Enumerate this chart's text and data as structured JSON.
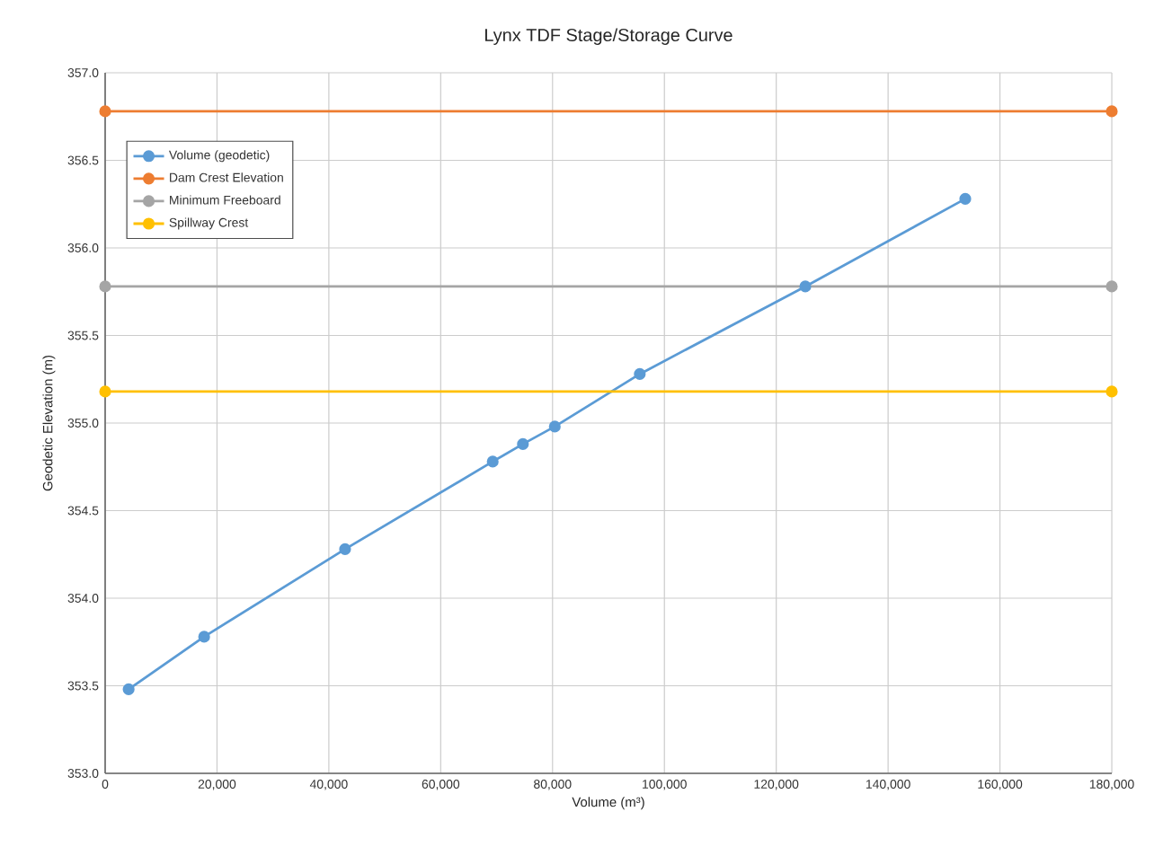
{
  "chart_data": {
    "type": "line",
    "title": "Lynx TDF Stage/Storage Curve",
    "xlabel": "Volume (m³)",
    "ylabel": "Geodetic Elevation (m)",
    "xlim": [
      0,
      180000
    ],
    "ylim": [
      353.0,
      357.0
    ],
    "xticks": [
      0,
      {
        "value": 20000,
        "label": "20,000"
      },
      {
        "value": 40000,
        "label": "40,000"
      },
      {
        "value": 60000,
        "label": "60,000"
      },
      {
        "value": 80000,
        "label": "80,000"
      },
      {
        "value": 100000,
        "label": "100,000"
      },
      {
        "value": 120000,
        "label": "120,000"
      },
      {
        "value": 140000,
        "label": "140,000"
      },
      {
        "value": 160000,
        "label": "160,000"
      },
      {
        "value": 180000,
        "label": "180,000"
      }
    ],
    "yticks": [
      {
        "value": 353.0,
        "label": "353.0"
      },
      {
        "value": 353.5,
        "label": "353.5"
      },
      {
        "value": 354.0,
        "label": "354.0"
      },
      {
        "value": 354.5,
        "label": "354.5"
      },
      {
        "value": 355.0,
        "label": "355.0"
      },
      {
        "value": 355.5,
        "label": "355.5"
      },
      {
        "value": 356.0,
        "label": "356.0"
      },
      {
        "value": 356.5,
        "label": "356.5"
      },
      {
        "value": 357.0,
        "label": "357.0"
      }
    ],
    "grid": true,
    "legend": "top left",
    "marker": "circle",
    "line_style": "solid",
    "series": [
      {
        "name": "Volume (geodetic)",
        "color": "#5b9bd5",
        "x": [
          4200,
          17700,
          42900,
          69300,
          74700,
          80400,
          95600,
          125200,
          153800
        ],
        "values": [
          353.48,
          353.78,
          354.28,
          354.78,
          354.88,
          354.98,
          355.28,
          355.78,
          356.28
        ]
      },
      {
        "name": "Dam Crest Elevation",
        "color": "#ed7d31",
        "x": [
          0,
          180000
        ],
        "values": [
          356.78,
          356.78
        ]
      },
      {
        "name": "Minimum Freeboard",
        "color": "#a5a5a5",
        "x": [
          0,
          180000
        ],
        "values": [
          355.78,
          355.78
        ]
      },
      {
        "name": "Spillway Crest",
        "color": "#ffc000",
        "x": [
          0,
          180000
        ],
        "values": [
          355.18,
          355.18
        ]
      }
    ]
  }
}
